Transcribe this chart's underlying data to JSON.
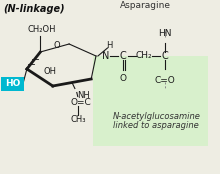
{
  "bg_color": "#eeede3",
  "green_box_color": "#d8f0cc",
  "title": "(N-linkage)",
  "asparagine_label": "Asparagine",
  "note_line1": "N-acetylglucosamine",
  "note_line2": "linked to asparagine",
  "ho_color": "#00b8d0",
  "ring_color": "#1a1a1a",
  "lw": 0.8,
  "bold_lw": 2.0
}
